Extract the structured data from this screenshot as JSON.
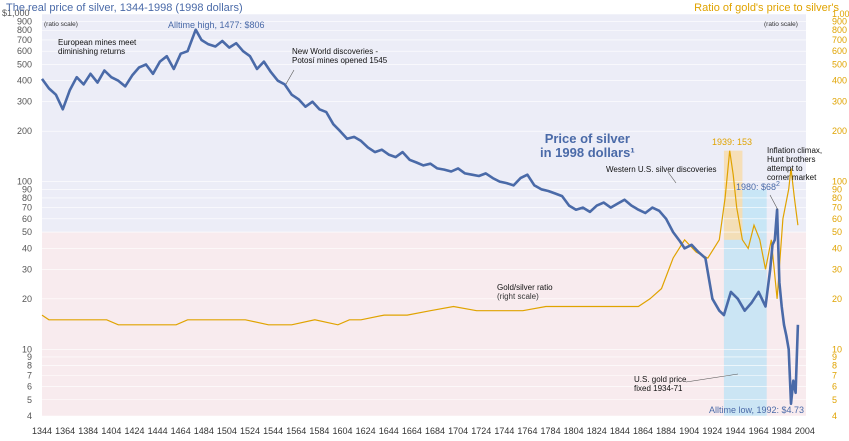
{
  "left_title": "The real price of silver, 1344-1998 (1998 dollars)",
  "right_title": "Ratio of gold's price to silver's",
  "left_axis_note": "(ratio scale)",
  "right_axis_note": "(ratio scale)",
  "top_left_tick": "$1,000",
  "annotations": {
    "alltime_high": "Alltime high, 1477: $806",
    "european_mines": [
      "European mines meet",
      "diminishing returns"
    ],
    "new_world": [
      "New World discoveries -",
      "Potosí mines opened 1545"
    ],
    "price_label": [
      "Price of silver",
      "in 1998 dollars¹"
    ],
    "western_us": "Western U.S. silver discoveries",
    "peak_1939": "1939: 153",
    "inflation": [
      "Inflation climax,",
      "Hunt brothers",
      "attempt to",
      "corner market"
    ],
    "peak_1980": "1980: $68",
    "peak_1980_sup": "2",
    "ratio_label": [
      "Gold/silver ratio",
      "(right scale)"
    ],
    "us_gold": [
      "U.S. gold price",
      "fixed 1934-71"
    ],
    "alltime_low": "Alltime low, 1992: $4.73"
  },
  "colors": {
    "silver_line": "#4a6aa8",
    "ratio_line": "#e0a300",
    "band_blue": "#ecedf7",
    "band_pink": "#f8ebee",
    "highlight_light_blue": "#bfe3f5",
    "highlight_gold": "#f7ddb0",
    "gridline": "#ffffff"
  },
  "chart_data": {
    "type": "line",
    "title": "The real price of silver, 1344-1998 (1998 dollars)",
    "x_ticks": [
      1344,
      1364,
      1384,
      1404,
      1424,
      1444,
      1464,
      1484,
      1504,
      1524,
      1544,
      1564,
      1584,
      1604,
      1624,
      1644,
      1664,
      1684,
      1704,
      1724,
      1744,
      1764,
      1784,
      1804,
      1824,
      1844,
      1864,
      1884,
      1904,
      1924,
      1944,
      1964,
      1984,
      2004
    ],
    "xlim": [
      1344,
      2005
    ],
    "left_axis": {
      "scale": "log",
      "ylim": [
        4,
        1000
      ],
      "ticks": [
        4,
        5,
        6,
        7,
        8,
        9,
        10,
        20,
        30,
        40,
        50,
        60,
        70,
        80,
        90,
        100,
        200,
        300,
        400,
        500,
        600,
        700,
        800,
        900,
        1000
      ],
      "tick_labels": [
        "4",
        "5",
        "6",
        "7",
        "8",
        "9",
        "10",
        "20",
        "30",
        "40",
        "50",
        "60",
        "70",
        "80",
        "90",
        "100",
        "200",
        "300",
        "400",
        "500",
        "600",
        "700",
        "800",
        "900",
        "$1,000"
      ]
    },
    "right_axis": {
      "scale": "log",
      "ylim": [
        4,
        1000
      ],
      "ticks": [
        4,
        5,
        6,
        7,
        8,
        9,
        10,
        20,
        30,
        40,
        50,
        60,
        70,
        80,
        90,
        100,
        200,
        300,
        400,
        500,
        600,
        700,
        800,
        900,
        1000
      ],
      "tick_labels": [
        "4",
        "5",
        "6",
        "7",
        "8",
        "9",
        "10",
        "20",
        "30",
        "40",
        "50",
        "60",
        "70",
        "80",
        "90",
        "100",
        "200",
        "300",
        "400",
        "500",
        "600",
        "700",
        "800",
        "900",
        "1,000"
      ]
    },
    "series": [
      {
        "name": "Price of silver in 1998 dollars",
        "axis": "left",
        "x": [
          1344,
          1350,
          1356,
          1362,
          1368,
          1374,
          1380,
          1386,
          1392,
          1398,
          1404,
          1410,
          1416,
          1422,
          1428,
          1434,
          1440,
          1446,
          1452,
          1458,
          1464,
          1470,
          1477,
          1482,
          1488,
          1494,
          1500,
          1506,
          1512,
          1518,
          1524,
          1530,
          1536,
          1542,
          1548,
          1554,
          1560,
          1566,
          1572,
          1578,
          1584,
          1590,
          1596,
          1602,
          1608,
          1614,
          1620,
          1626,
          1632,
          1638,
          1644,
          1650,
          1656,
          1662,
          1668,
          1674,
          1680,
          1686,
          1692,
          1698,
          1704,
          1710,
          1716,
          1722,
          1728,
          1734,
          1740,
          1746,
          1752,
          1758,
          1764,
          1770,
          1776,
          1782,
          1788,
          1794,
          1800,
          1806,
          1812,
          1818,
          1824,
          1830,
          1836,
          1842,
          1848,
          1854,
          1860,
          1866,
          1872,
          1878,
          1884,
          1890,
          1896,
          1900,
          1906,
          1912,
          1918,
          1924,
          1930,
          1934,
          1940,
          1946,
          1952,
          1958,
          1964,
          1970,
          1974,
          1976,
          1978,
          1980,
          1982,
          1984,
          1986,
          1988,
          1990,
          1992,
          1994,
          1996,
          1998
        ],
        "y": [
          410,
          360,
          330,
          270,
          350,
          420,
          380,
          440,
          390,
          460,
          420,
          400,
          370,
          430,
          480,
          500,
          440,
          520,
          560,
          470,
          580,
          600,
          806,
          700,
          660,
          640,
          690,
          630,
          670,
          600,
          560,
          470,
          520,
          450,
          400,
          380,
          330,
          310,
          280,
          300,
          270,
          260,
          220,
          200,
          180,
          185,
          175,
          160,
          150,
          155,
          145,
          140,
          150,
          135,
          130,
          125,
          128,
          120,
          118,
          115,
          120,
          112,
          110,
          108,
          112,
          105,
          100,
          98,
          95,
          105,
          110,
          95,
          90,
          88,
          85,
          82,
          72,
          68,
          70,
          66,
          72,
          75,
          70,
          74,
          78,
          72,
          68,
          65,
          70,
          67,
          60,
          50,
          44,
          40,
          42,
          38,
          35,
          20,
          17,
          16,
          22,
          20,
          17,
          19,
          22,
          18,
          30,
          42,
          45,
          68,
          25,
          18,
          14,
          12,
          10,
          4.73,
          6.5,
          5.5,
          14
        ]
      },
      {
        "name": "Gold/silver ratio",
        "axis": "right",
        "x": [
          1344,
          1350,
          1360,
          1380,
          1400,
          1410,
          1420,
          1440,
          1460,
          1470,
          1480,
          1500,
          1520,
          1540,
          1560,
          1580,
          1600,
          1610,
          1620,
          1640,
          1660,
          1680,
          1700,
          1720,
          1740,
          1760,
          1780,
          1800,
          1820,
          1840,
          1860,
          1870,
          1880,
          1890,
          1900,
          1910,
          1920,
          1930,
          1935,
          1939,
          1942,
          1945,
          1950,
          1955,
          1960,
          1965,
          1970,
          1975,
          1980,
          1985,
          1990,
          1992,
          1995,
          1998
        ],
        "y": [
          16,
          15,
          15,
          15,
          15,
          14,
          14,
          14,
          14,
          15,
          15,
          15,
          15,
          14,
          14,
          15,
          14,
          15,
          15,
          16,
          16,
          17,
          18,
          17,
          17,
          17,
          18,
          18,
          18,
          18,
          18,
          20,
          23,
          35,
          45,
          38,
          35,
          45,
          80,
          153,
          110,
          70,
          45,
          40,
          55,
          45,
          30,
          45,
          20,
          60,
          90,
          120,
          80,
          55
        ]
      }
    ]
  }
}
